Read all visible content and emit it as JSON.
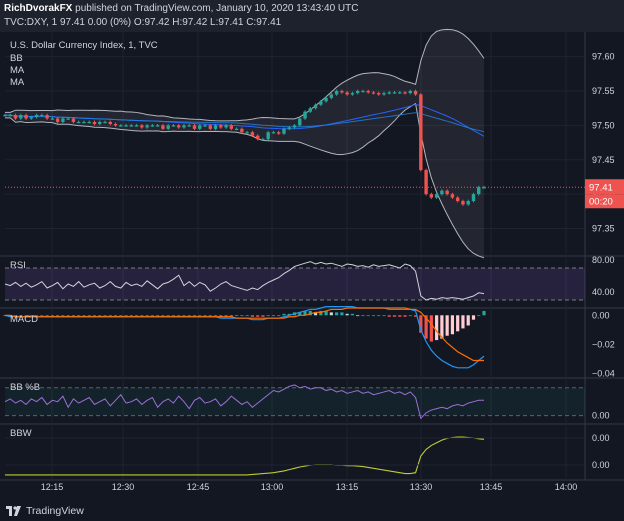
{
  "header": {
    "author": "RichDvorakFX",
    "published": "published on TradingView.com, January 10, 2020 13:43:40 UTC",
    "ohlc_line": "TVC:DXY, 1  97.41  0.00 (0%)  O:97.42  H:97.42  L:97.41  C:97.41"
  },
  "indicator_labels": {
    "title": "U.S. Dollar Currency Index, 1, TVC",
    "bb": "BB",
    "ma1": "MA",
    "ma2": "MA",
    "rsi": "RSI",
    "macd": "MACD",
    "bbpct": "BB %B",
    "bbw": "BBW"
  },
  "price_badges": {
    "price": "97.41",
    "countdown": "00:20"
  },
  "footer": {
    "brand": "TradingView"
  },
  "colors": {
    "background": "#131722",
    "up": "#26a69a",
    "down": "#ef5350",
    "bb_band": "#b2b5be",
    "ma_blue": "#2962ff",
    "rsi_fill": "#7e57c2",
    "macd_line": "#2196f3",
    "signal_line": "#ff6d00",
    "bbpct_line": "#9c6fd6",
    "bbw_line": "#c0ca33",
    "price_line": "#ef5350"
  },
  "chart_data": [
    {
      "type": "candlestick",
      "title": "U.S. Dollar Currency Index, 1, TVC",
      "x_ticks": [
        "12:15",
        "12:30",
        "12:45",
        "13:00",
        "13:15",
        "13:30",
        "13:45",
        "14:00"
      ],
      "y_ticks": [
        "97.35",
        "97.40",
        "97.45",
        "97.50",
        "97.55",
        "97.60"
      ],
      "ylim": [
        97.31,
        97.63
      ],
      "last_price": 97.41,
      "closes": [
        97.515,
        97.515,
        97.51,
        97.515,
        97.51,
        97.512,
        97.515,
        97.515,
        97.51,
        97.51,
        97.505,
        97.51,
        97.51,
        97.505,
        97.505,
        97.505,
        97.505,
        97.502,
        97.505,
        97.505,
        97.502,
        97.5,
        97.5,
        97.5,
        97.5,
        97.5,
        97.497,
        97.5,
        97.5,
        97.5,
        97.495,
        97.5,
        97.5,
        97.497,
        97.5,
        97.5,
        97.495,
        97.5,
        97.5,
        97.495,
        97.5,
        97.497,
        97.5,
        97.495,
        97.495,
        97.49,
        97.49,
        97.485,
        97.48,
        97.48,
        97.49,
        97.49,
        97.488,
        97.495,
        97.497,
        97.5,
        97.51,
        97.52,
        97.525,
        97.53,
        97.535,
        97.54,
        97.545,
        97.55,
        97.548,
        97.545,
        97.547,
        97.55,
        97.55,
        97.548,
        97.547,
        97.545,
        97.547,
        97.548,
        97.548,
        97.548,
        97.547,
        97.55,
        97.545,
        97.435,
        97.4,
        97.395,
        97.4,
        97.405,
        97.4,
        97.395,
        97.39,
        97.385,
        97.39,
        97.4,
        97.41,
        97.41
      ]
    },
    {
      "type": "line",
      "name": "RSI",
      "y_ticks": [
        "40.00",
        "80.00"
      ],
      "ylim": [
        20,
        85
      ],
      "bands": [
        30,
        70
      ],
      "values": [
        50,
        48,
        52,
        47,
        51,
        46,
        49,
        53,
        45,
        48,
        52,
        44,
        50,
        47,
        53,
        46,
        49,
        51,
        45,
        48,
        53,
        47,
        45,
        52,
        48,
        50,
        47,
        54,
        49,
        44,
        50,
        52,
        56,
        61,
        48,
        53,
        47,
        52,
        49,
        41,
        45,
        50,
        53,
        48,
        46,
        44,
        42,
        45,
        43,
        48,
        52,
        55,
        58,
        63,
        67,
        72,
        74,
        76,
        78,
        75,
        77,
        75,
        76,
        74,
        72,
        75,
        74,
        72,
        73,
        71,
        74,
        72,
        73,
        74,
        72,
        70,
        75,
        73,
        66,
        35,
        30,
        32,
        31,
        33,
        32,
        33,
        32,
        31,
        33,
        35,
        39,
        38
      ]
    },
    {
      "type": "line_histogram",
      "name": "MACD",
      "y_ticks": [
        "0.00",
        "−0.02",
        "−0.04"
      ],
      "ylim": [
        -0.043,
        0.005
      ],
      "macd": [
        0.0,
        -0.001,
        -0.001,
        -0.001,
        -0.001,
        -0.001,
        -0.001,
        -0.001,
        -0.001,
        -0.001,
        -0.001,
        -0.001,
        -0.001,
        -0.001,
        -0.001,
        -0.001,
        -0.001,
        -0.001,
        -0.001,
        -0.001,
        -0.001,
        -0.001,
        -0.001,
        -0.001,
        -0.001,
        -0.001,
        -0.001,
        -0.001,
        -0.001,
        -0.001,
        -0.001,
        -0.001,
        -0.001,
        -0.001,
        -0.001,
        -0.001,
        -0.001,
        -0.001,
        -0.001,
        -0.001,
        -0.001,
        -0.002,
        -0.002,
        -0.002,
        -0.002,
        -0.002,
        -0.002,
        -0.003,
        -0.003,
        -0.003,
        -0.002,
        -0.002,
        -0.002,
        -0.001,
        0.0,
        0.001,
        0.002,
        0.003,
        0.004,
        0.004,
        0.005,
        0.006,
        0.006,
        0.006,
        0.006,
        0.006,
        0.006,
        0.005,
        0.005,
        0.005,
        0.005,
        0.005,
        0.005,
        0.004,
        0.004,
        0.004,
        0.004,
        0.004,
        0.003,
        -0.01,
        -0.018,
        -0.024,
        -0.028,
        -0.031,
        -0.033,
        -0.035,
        -0.036,
        -0.036,
        -0.036,
        -0.034,
        -0.031,
        -0.028
      ],
      "signal": [
        0.0,
        0.0,
        -0.001,
        -0.001,
        -0.001,
        -0.001,
        -0.001,
        -0.001,
        -0.001,
        -0.001,
        -0.001,
        -0.001,
        -0.001,
        -0.001,
        -0.001,
        -0.001,
        -0.001,
        -0.001,
        -0.001,
        -0.001,
        -0.001,
        -0.001,
        -0.001,
        -0.001,
        -0.001,
        -0.001,
        -0.001,
        -0.001,
        -0.001,
        -0.001,
        -0.001,
        -0.001,
        -0.001,
        -0.001,
        -0.001,
        -0.001,
        -0.001,
        -0.001,
        -0.001,
        -0.001,
        -0.001,
        -0.001,
        -0.001,
        -0.001,
        -0.002,
        -0.002,
        -0.002,
        -0.002,
        -0.002,
        -0.002,
        -0.002,
        -0.002,
        -0.002,
        -0.002,
        -0.001,
        -0.001,
        0.0,
        0.0,
        0.001,
        0.002,
        0.002,
        0.003,
        0.004,
        0.004,
        0.004,
        0.005,
        0.005,
        0.005,
        0.005,
        0.005,
        0.005,
        0.005,
        0.005,
        0.005,
        0.005,
        0.005,
        0.005,
        0.004,
        0.004,
        0.002,
        -0.002,
        -0.006,
        -0.011,
        -0.015,
        -0.019,
        -0.022,
        -0.025,
        -0.027,
        -0.029,
        -0.031,
        -0.031,
        -0.031
      ]
    },
    {
      "type": "line",
      "name": "BB %B",
      "y_ticks": [
        "0.00"
      ],
      "ylim": [
        -0.3,
        1.35
      ],
      "bands": [
        0,
        1
      ],
      "values": [
        0.5,
        0.6,
        0.45,
        0.55,
        0.4,
        0.6,
        0.5,
        0.65,
        0.4,
        0.55,
        0.5,
        0.7,
        0.3,
        0.6,
        0.45,
        0.55,
        0.65,
        0.4,
        0.5,
        0.6,
        0.35,
        0.55,
        0.75,
        0.45,
        0.5,
        0.6,
        0.4,
        0.55,
        0.65,
        0.3,
        0.5,
        0.6,
        0.45,
        0.7,
        0.5,
        0.25,
        0.55,
        0.65,
        0.45,
        0.5,
        0.6,
        0.35,
        0.5,
        0.7,
        0.55,
        0.4,
        0.5,
        0.3,
        0.45,
        0.6,
        0.75,
        0.9,
        0.85,
        0.95,
        1.05,
        1.1,
        1.0,
        1.05,
        0.95,
        1.0,
        1.0,
        0.9,
        0.95,
        0.85,
        0.9,
        0.8,
        0.85,
        0.9,
        0.8,
        0.85,
        0.75,
        0.8,
        0.85,
        0.9,
        0.8,
        0.85,
        0.75,
        0.85,
        0.65,
        -0.1,
        0.1,
        0.2,
        0.25,
        0.3,
        0.25,
        0.35,
        0.4,
        0.35,
        0.45,
        0.5,
        0.55,
        0.55
      ]
    },
    {
      "type": "line",
      "name": "BBW",
      "y_ticks": [
        "0.00",
        "0.00"
      ],
      "ylim": [
        0,
        1
      ],
      "values": [
        0.07,
        0.07,
        0.07,
        0.07,
        0.07,
        0.07,
        0.07,
        0.07,
        0.07,
        0.07,
        0.07,
        0.07,
        0.07,
        0.07,
        0.07,
        0.07,
        0.07,
        0.07,
        0.07,
        0.07,
        0.07,
        0.07,
        0.07,
        0.07,
        0.07,
        0.07,
        0.07,
        0.07,
        0.07,
        0.07,
        0.07,
        0.07,
        0.07,
        0.07,
        0.07,
        0.07,
        0.07,
        0.07,
        0.07,
        0.07,
        0.07,
        0.07,
        0.07,
        0.07,
        0.07,
        0.07,
        0.07,
        0.08,
        0.09,
        0.1,
        0.11,
        0.12,
        0.14,
        0.16,
        0.19,
        0.22,
        0.25,
        0.27,
        0.29,
        0.3,
        0.3,
        0.3,
        0.3,
        0.29,
        0.29,
        0.28,
        0.28,
        0.27,
        0.26,
        0.24,
        0.22,
        0.2,
        0.18,
        0.16,
        0.14,
        0.12,
        0.1,
        0.1,
        0.12,
        0.5,
        0.65,
        0.74,
        0.8,
        0.86,
        0.9,
        0.92,
        0.93,
        0.93,
        0.92,
        0.91,
        0.89,
        0.88
      ]
    }
  ]
}
